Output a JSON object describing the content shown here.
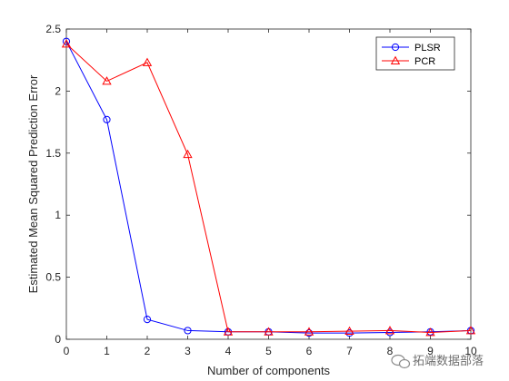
{
  "chart_data": {
    "type": "line",
    "xlabel": "Number of components",
    "ylabel": "Estimated Mean Squared Prediction Error",
    "xlim": [
      0,
      10
    ],
    "ylim": [
      0,
      2.5
    ],
    "xticks": [
      0,
      1,
      2,
      3,
      4,
      5,
      6,
      7,
      8,
      9,
      10
    ],
    "xtick_labels": [
      "0",
      "1",
      "2",
      "3",
      "4",
      "5",
      "6",
      "7",
      "8",
      "9",
      "10"
    ],
    "yticks": [
      0,
      0.5,
      1,
      1.5,
      2,
      2.5
    ],
    "ytick_labels": [
      "0",
      "0.5",
      "1",
      "1.5",
      "2",
      "2.5"
    ],
    "grid": false,
    "legend_position": "top-right",
    "x": [
      0,
      1,
      2,
      3,
      4,
      5,
      6,
      7,
      8,
      9,
      10
    ],
    "series": [
      {
        "name": "PLSR",
        "color": "#0000ff",
        "marker": "circle",
        "values": [
          2.4,
          1.77,
          0.16,
          0.07,
          0.06,
          0.06,
          0.05,
          0.05,
          0.055,
          0.06,
          0.07
        ]
      },
      {
        "name": "PCR",
        "color": "#ff0000",
        "marker": "triangle",
        "values": [
          2.38,
          2.08,
          2.23,
          1.49,
          0.06,
          0.06,
          0.06,
          0.065,
          0.07,
          0.055,
          0.07
        ]
      }
    ]
  },
  "watermark": {
    "text": "拓端数据部落",
    "icon": "wechat-icon"
  }
}
